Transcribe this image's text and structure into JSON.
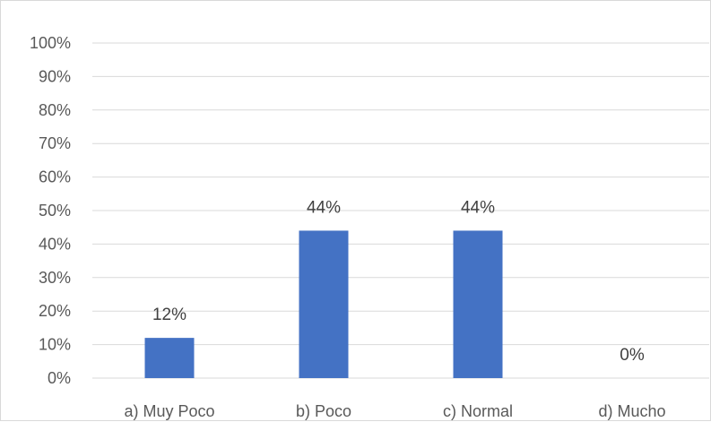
{
  "chart_data": {
    "type": "bar",
    "categories": [
      "a) Muy Poco",
      "b) Poco",
      "c) Normal",
      "d) Mucho"
    ],
    "values": [
      12,
      44,
      44,
      0
    ],
    "data_labels": [
      "12%",
      "44%",
      "44%",
      "0%"
    ],
    "y_ticks": [
      "0%",
      "10%",
      "20%",
      "30%",
      "40%",
      "50%",
      "60%",
      "70%",
      "80%",
      "90%",
      "100%"
    ],
    "ylim": [
      0,
      100
    ],
    "grid": true,
    "legend": "none",
    "bar_color": "#4472c4"
  }
}
